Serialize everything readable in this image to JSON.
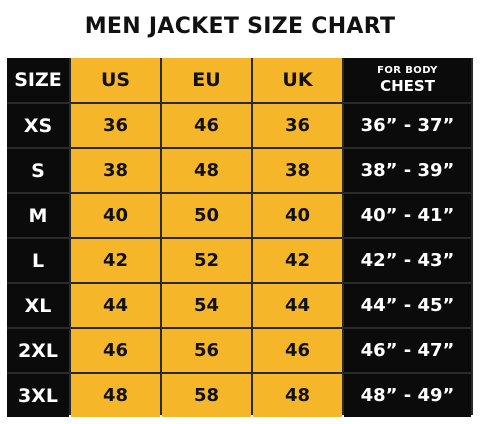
{
  "title": "MEN JACKET SIZE CHART",
  "header": {
    "size": "SIZE",
    "us": "US",
    "eu": "EU",
    "uk": "UK",
    "chest_small": "FOR BODY",
    "chest_big": "CHEST"
  },
  "rows": [
    {
      "size": "XS",
      "us": "36",
      "eu": "46",
      "uk": "36",
      "chest": "36” - 37”"
    },
    {
      "size": "S",
      "us": "38",
      "eu": "48",
      "uk": "38",
      "chest": "38” - 39”"
    },
    {
      "size": "M",
      "us": "40",
      "eu": "50",
      "uk": "40",
      "chest": "40” - 41”"
    },
    {
      "size": "L",
      "us": "42",
      "eu": "52",
      "uk": "42",
      "chest": "42” - 43”"
    },
    {
      "size": "XL",
      "us": "44",
      "eu": "54",
      "uk": "44",
      "chest": "44” - 45”"
    },
    {
      "size": "2XL",
      "us": "46",
      "eu": "56",
      "uk": "46",
      "chest": "46” - 47”"
    },
    {
      "size": "3XL",
      "us": "48",
      "eu": "58",
      "uk": "48",
      "chest": "48” - 49”"
    }
  ],
  "colors": {
    "dark": "#0b0b0b",
    "gold": "#f6b62a",
    "text_dark": "#111111",
    "text_light": "#ffffff"
  }
}
